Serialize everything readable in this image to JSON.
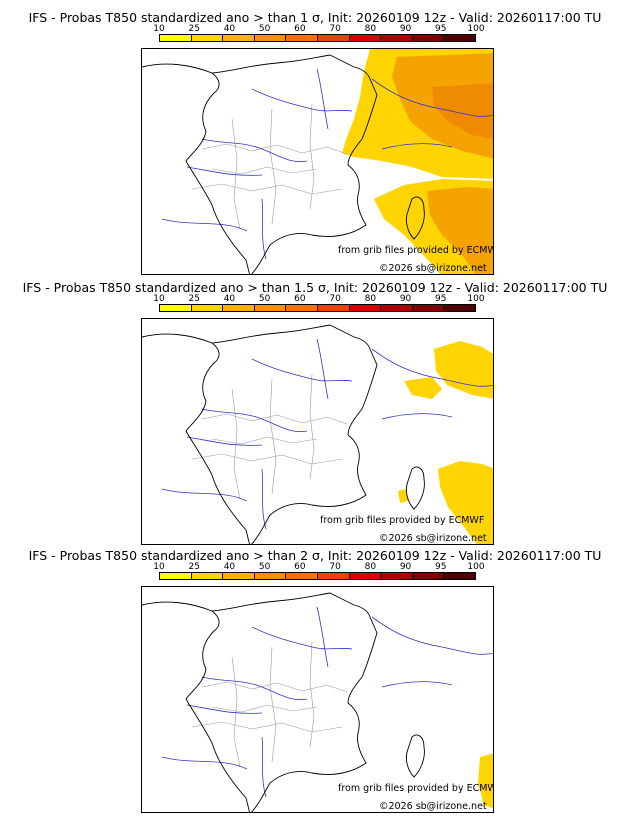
{
  "colors": {
    "scale": [
      "#ffff00",
      "#ffd700",
      "#ffb000",
      "#ff9000",
      "#ff7000",
      "#f24000",
      "#dd0000",
      "#b00000",
      "#800000",
      "#500000"
    ],
    "shading_primary": "#ffd400",
    "shading_secondary": "#f5a300",
    "shading_tertiary": "#ef8b00",
    "rivers": "#3333cc",
    "borders": "#000000",
    "regions": "#999999"
  },
  "colorbar_ticks": [
    "10",
    "25",
    "40",
    "50",
    "60",
    "70",
    "80",
    "90",
    "95",
    "100"
  ],
  "credits": {
    "source": "from grib files provided by ECMWF",
    "copyright": "©2026 sb@irizone.net"
  },
  "panels": [
    {
      "title": "IFS - Probas T850  standardized ano > than 1 σ, Init: 20260109 12z - Valid: 20260117:00 TU"
    },
    {
      "title": "IFS - Probas T850  standardized ano > than 1.5 σ, Init: 20260109 12z - Valid: 20260117:00 TU"
    },
    {
      "title": "IFS - Probas T850  standardized ano > than 2 σ, Init: 20260109 12z - Valid: 20260117:00 TU"
    }
  ]
}
